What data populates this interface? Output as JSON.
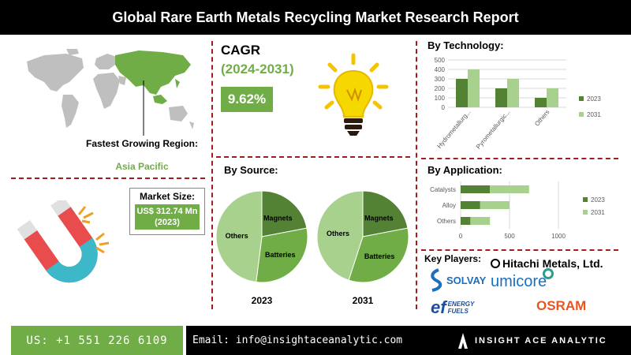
{
  "title": "Global Rare Earth Metals Recycling Market Research Report",
  "region": {
    "label": "Fastest Growing Region:",
    "value": "Asia Pacific"
  },
  "market_size": {
    "label": "Market Size:",
    "value": "US$ 312.74 Mn (2023)"
  },
  "cagr": {
    "label": "CAGR",
    "period": "(2024-2031)",
    "value": "9.62%"
  },
  "by_source": {
    "heading": "By Source:"
  },
  "by_technology": {
    "heading": "By Technology:"
  },
  "by_application": {
    "heading": "By Application:"
  },
  "key_players": {
    "heading": "Key Players:",
    "logos": [
      "Hitachi Metals, Ltd.",
      "SOLVAY",
      "umicore",
      "ENERGY FUELS",
      "OSRAM"
    ]
  },
  "footer": {
    "phone": "US: +1 551 226 6109",
    "email": "Email: info@insightaceanalytic.com",
    "brand": "INSIGHT ACE ANALYTIC"
  },
  "colors": {
    "dark_green": "#548235",
    "mid_green": "#70ad47",
    "light_green": "#a9d18e",
    "divider": "#a51c1c"
  },
  "chart_data": [
    {
      "type": "pie",
      "title": "2023",
      "labels": [
        "Magnets",
        "Batteries",
        "Others"
      ],
      "values": [
        22,
        30,
        48
      ]
    },
    {
      "type": "pie",
      "title": "2031",
      "labels": [
        "Magnets",
        "Batteries",
        "Others"
      ],
      "values": [
        22,
        33,
        45
      ]
    },
    {
      "type": "bar",
      "orientation": "vertical",
      "categories": [
        "Hydrometallurg...",
        "Pyrometallurgic...",
        "Others"
      ],
      "series": [
        {
          "name": "2023",
          "values": [
            300,
            200,
            100
          ]
        },
        {
          "name": "2031",
          "values": [
            400,
            300,
            200
          ]
        }
      ],
      "ylim": [
        0,
        500
      ],
      "yticks": [
        "0",
        "100",
        "200",
        "300",
        "400",
        "500"
      ],
      "grid": true,
      "legend": "right"
    },
    {
      "type": "bar",
      "orientation": "horizontal",
      "stacked": true,
      "categories": [
        "Catalysts",
        "Alloy",
        "Others"
      ],
      "series": [
        {
          "name": "2023",
          "values": [
            300,
            200,
            100
          ]
        },
        {
          "name": "2031",
          "values": [
            400,
            300,
            200
          ]
        }
      ],
      "xlim": [
        0,
        1000
      ],
      "xticks": [
        "0",
        "500",
        "1000"
      ],
      "grid": true,
      "legend": "right"
    }
  ]
}
